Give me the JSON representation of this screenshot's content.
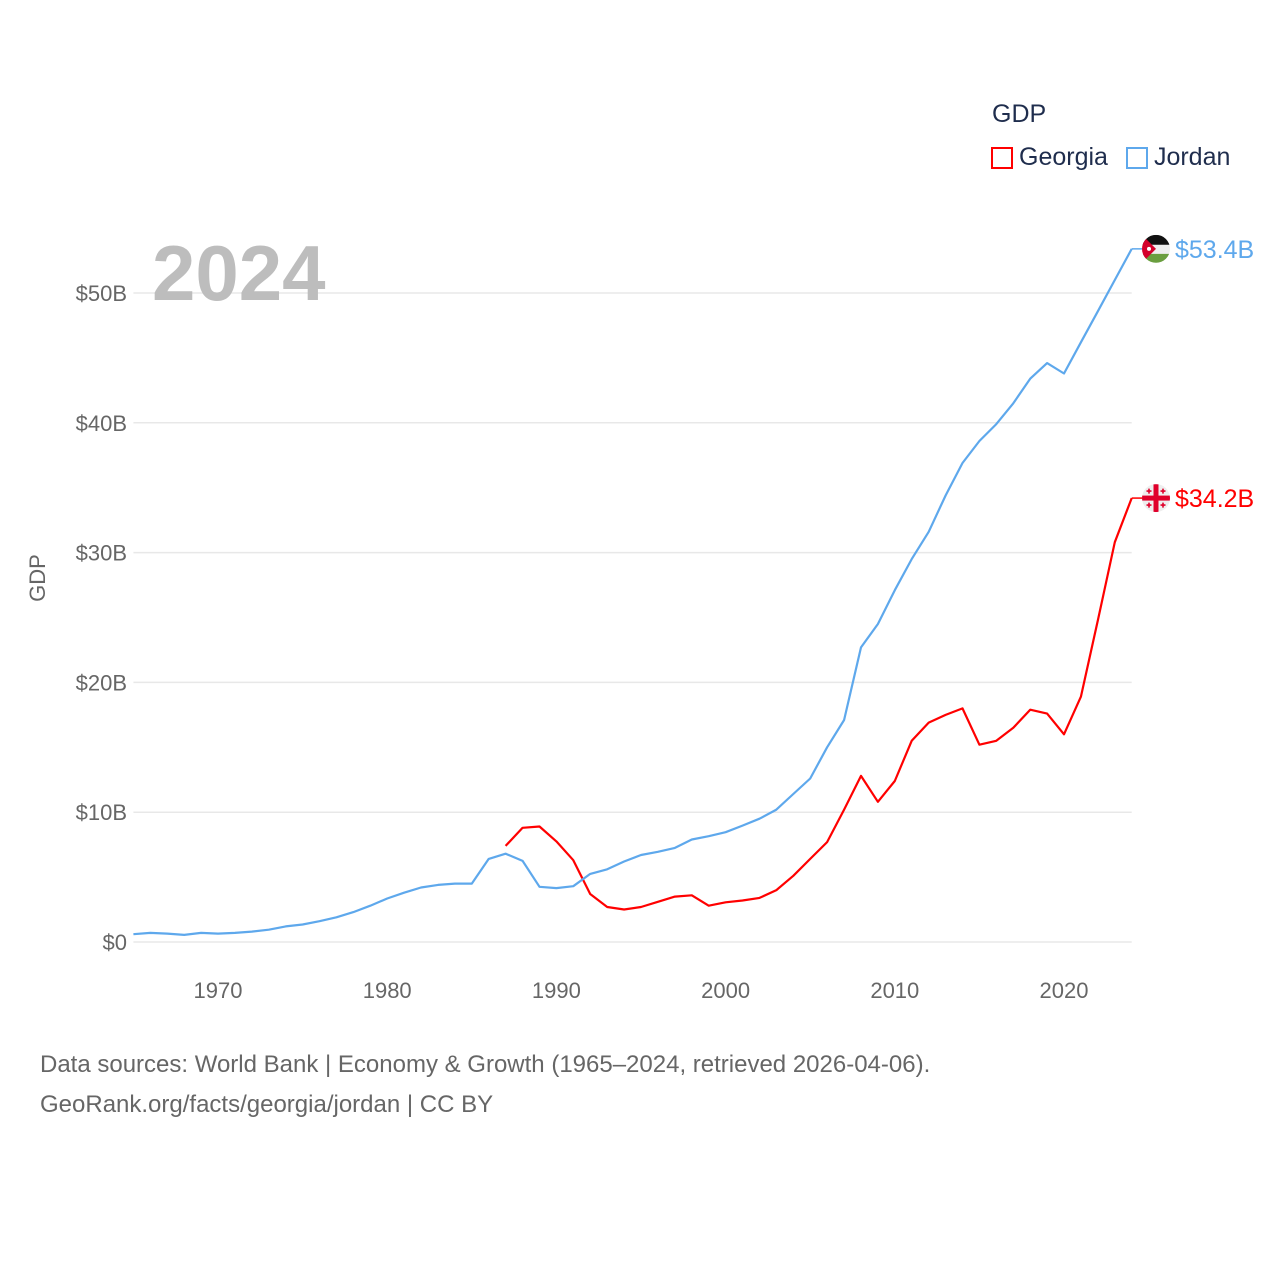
{
  "chart_data": {
    "type": "line",
    "year_label": "2024",
    "ylabel": "GDP",
    "legend_title": "GDP",
    "legend_placement": "top-right",
    "ylim": [
      0,
      50
    ],
    "xlim": [
      1965,
      2024
    ],
    "y_ticks": [
      {
        "v": 0,
        "label": "$0"
      },
      {
        "v": 10,
        "label": "$10B"
      },
      {
        "v": 20,
        "label": "$20B"
      },
      {
        "v": 30,
        "label": "$30B"
      },
      {
        "v": 40,
        "label": "$40B"
      },
      {
        "v": 50,
        "label": "$50B"
      }
    ],
    "x_ticks": [
      {
        "v": 1970,
        "label": "1970"
      },
      {
        "v": 1980,
        "label": "1980"
      },
      {
        "v": 1990,
        "label": "1990"
      },
      {
        "v": 2000,
        "label": "2000"
      },
      {
        "v": 2010,
        "label": "2010"
      },
      {
        "v": 2020,
        "label": "2020"
      }
    ],
    "grid": true,
    "series": [
      {
        "name": "Georgia",
        "color": "#ff0000",
        "end_label": "$34.2B",
        "flag": "georgia-flag",
        "start_year": 1987,
        "values": [
          7.4,
          8.8,
          8.9,
          7.75,
          6.3,
          3.7,
          2.7,
          2.5,
          2.7,
          3.1,
          3.5,
          3.6,
          2.8,
          3.06,
          3.2,
          3.4,
          4.0,
          5.1,
          6.4,
          7.7,
          10.2,
          12.8,
          10.8,
          12.4,
          15.5,
          16.9,
          17.5,
          18.0,
          15.2,
          15.5,
          16.5,
          17.9,
          17.6,
          16.0,
          18.9,
          24.8,
          30.8,
          34.2
        ]
      },
      {
        "name": "Jordan",
        "color": "#5ea8ec",
        "end_label": "$53.4B",
        "flag": "jordan-flag",
        "start_year": 1965,
        "values": [
          0.6,
          0.7,
          0.65,
          0.55,
          0.7,
          0.65,
          0.7,
          0.8,
          0.95,
          1.2,
          1.35,
          1.6,
          1.9,
          2.3,
          2.8,
          3.35,
          3.8,
          4.2,
          4.4,
          4.5,
          4.5,
          6.4,
          6.8,
          6.25,
          4.25,
          4.15,
          4.3,
          5.25,
          5.6,
          6.2,
          6.7,
          6.95,
          7.25,
          7.9,
          8.15,
          8.46,
          8.97,
          9.5,
          10.2,
          11.4,
          12.6,
          15.0,
          17.1,
          22.7,
          24.5,
          27.1,
          29.5,
          31.6,
          34.4,
          36.9,
          38.6,
          39.9,
          41.5,
          43.4,
          44.6,
          43.8,
          46.2,
          48.6,
          51.0,
          53.4
        ]
      }
    ]
  },
  "footer": {
    "line1": "Data sources: World Bank | Economy & Growth (1965–2024, retrieved 2026-04-06).",
    "line2": "GeoRank.org/facts/georgia/jordan | CC BY"
  }
}
